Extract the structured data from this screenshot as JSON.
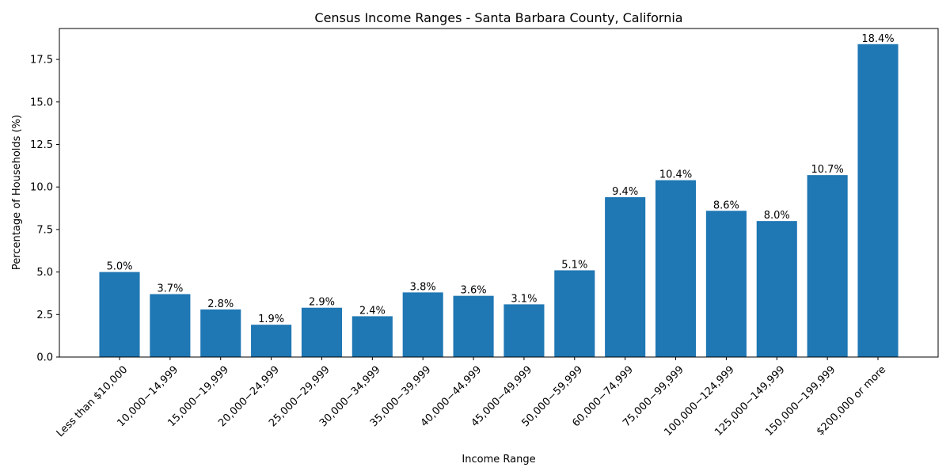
{
  "chart_data": {
    "type": "bar",
    "title": "Census Income Ranges - Santa Barbara County, California",
    "xlabel": "Income Range",
    "ylabel": "Percentage of Households (%)",
    "categories": [
      "Less than $10,000",
      "10,000−14,999",
      "15,000−19,999",
      "20,000−24,999",
      "25,000−29,999",
      "30,000−34,999",
      "35,000−39,999",
      "40,000−44,999",
      "45,000−49,999",
      "50,000−59,999",
      "60,000−74,999",
      "75,000−99,999",
      "100,000−124,999",
      "125,000−149,999",
      "150,000−199,999",
      "$200,000 or more"
    ],
    "values": [
      5.0,
      3.7,
      2.8,
      1.9,
      2.9,
      2.4,
      3.8,
      3.6,
      3.1,
      5.1,
      9.4,
      10.4,
      8.6,
      8.0,
      10.7,
      18.4
    ],
    "data_labels": [
      "5.0%",
      "3.7%",
      "2.8%",
      "1.9%",
      "2.9%",
      "2.4%",
      "3.8%",
      "3.6%",
      "3.1%",
      "5.1%",
      "9.4%",
      "10.4%",
      "8.6%",
      "8.0%",
      "10.7%",
      "18.4%"
    ],
    "ylim": [
      0,
      19.32
    ],
    "yticks": [
      0,
      2.5,
      5,
      7.5,
      10,
      12.5,
      15,
      17.5
    ],
    "ytick_labels": [
      "0.0",
      "2.5",
      "5.0",
      "7.5",
      "10.0",
      "12.5",
      "15.0",
      "17.5"
    ],
    "grid": false,
    "bar_color": "#1f77b4"
  }
}
